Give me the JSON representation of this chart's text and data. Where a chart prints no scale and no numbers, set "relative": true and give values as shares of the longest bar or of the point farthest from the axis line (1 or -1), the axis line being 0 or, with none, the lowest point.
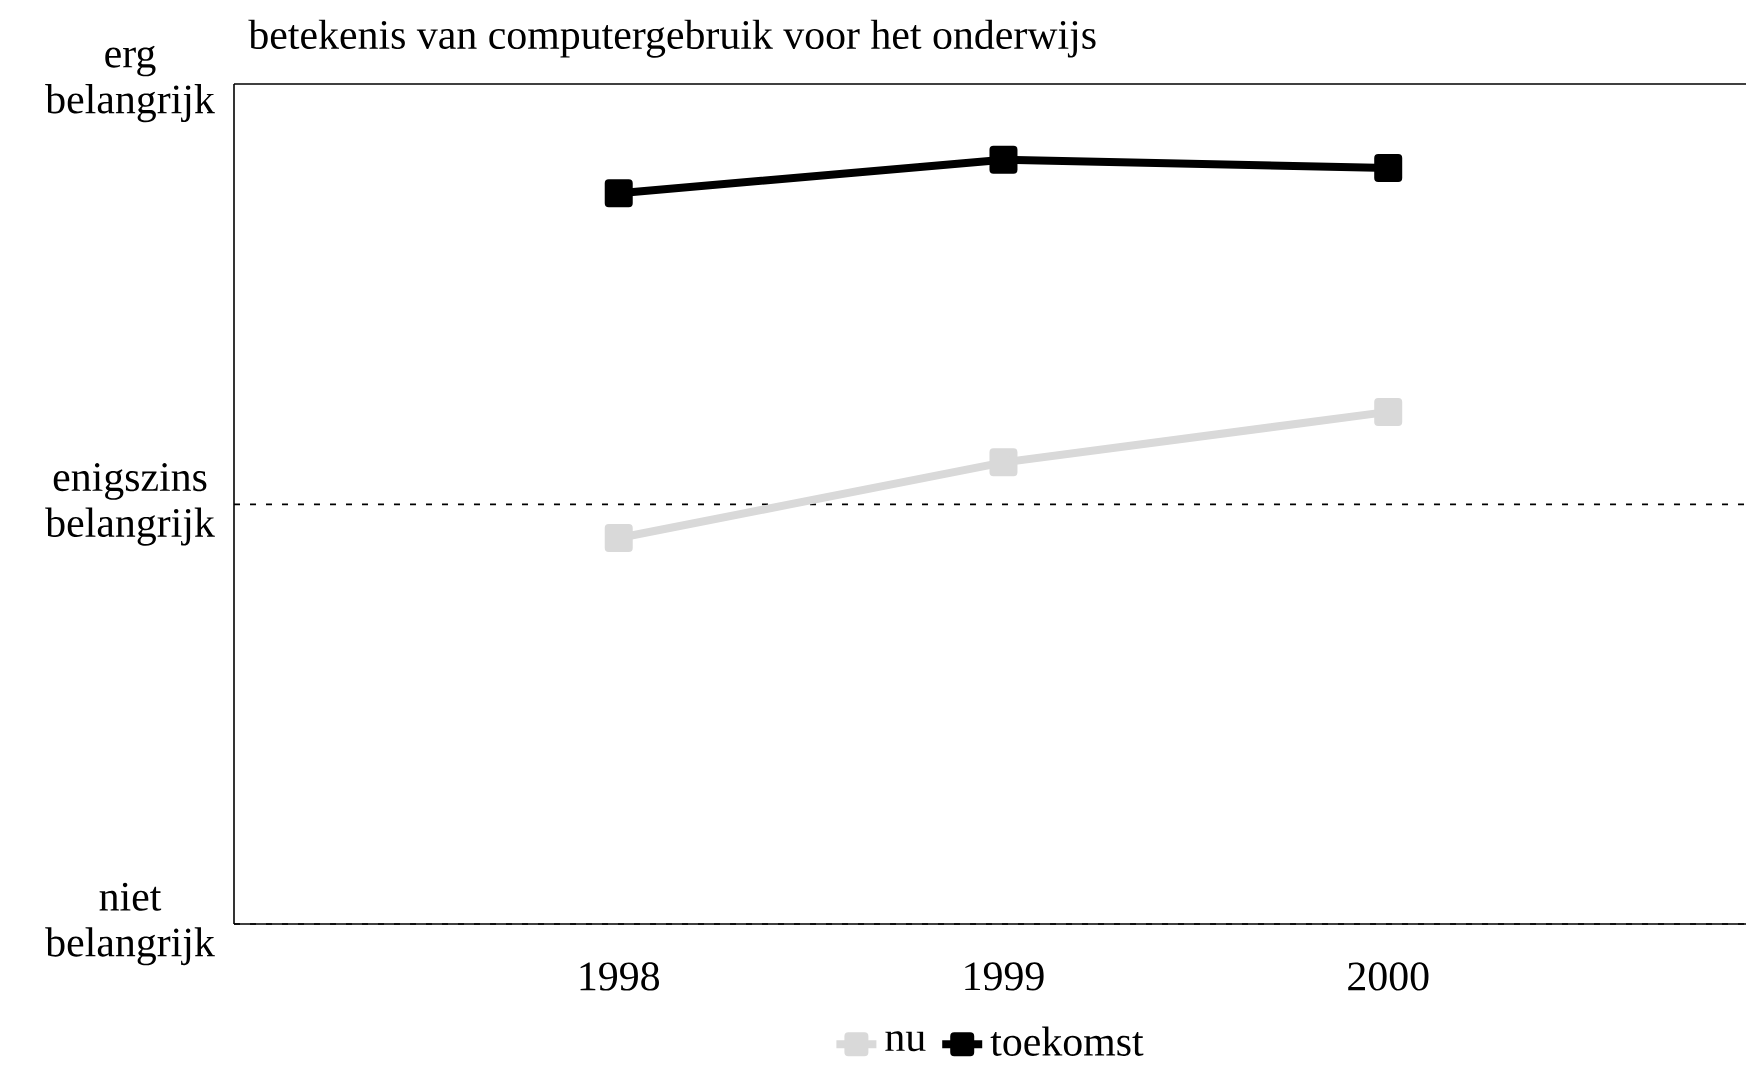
{
  "chart_data": {
    "type": "line",
    "title": "betekenis van computergebruik voor het onderwijs",
    "categories": [
      "1998",
      "1999",
      "2000"
    ],
    "relative": true,
    "series": [
      {
        "name": "nu",
        "color": "#d9d9d9",
        "values": [
          0.505,
          0.604,
          0.67
        ]
      },
      {
        "name": "toekomst",
        "color": "#000000",
        "values": [
          0.956,
          1,
          0.989
        ]
      }
    ],
    "ref_lines": [
      {
        "axis": "y",
        "value": 0,
        "label": "niet belangrijk",
        "line_style": "dashed",
        "color": "#000000"
      },
      {
        "axis": "y",
        "value": 0.549,
        "label": "enigszins belangrijk",
        "line_style": "dashed",
        "color": "#000000"
      },
      {
        "axis": "y",
        "value": 1.099,
        "label": "erg belangrijk",
        "line_style": "solid",
        "color": "#000000"
      }
    ],
    "legend": "bottom",
    "marker": "square",
    "line_style": "solid"
  }
}
